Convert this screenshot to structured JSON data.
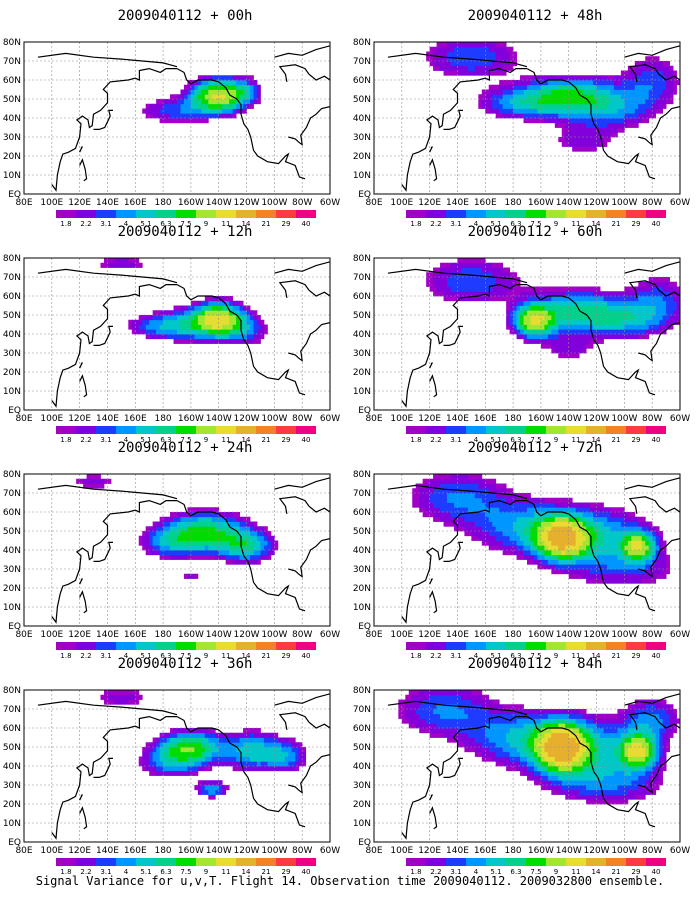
{
  "caption": "Signal Variance for u,v,T. Flight 14. Observation time 2009040112. 2009032800 ensemble.",
  "colorbar": {
    "labels": [
      "1.8",
      "2.2",
      "3.1",
      "4",
      "5.1",
      "6.3",
      "7.5",
      "9",
      "11",
      "14",
      "21",
      "29",
      "40"
    ],
    "colors": [
      "#a000c8",
      "#8200dc",
      "#1e3cff",
      "#0096ff",
      "#00c8c8",
      "#00d28c",
      "#00dc00",
      "#a0e632",
      "#e6dc32",
      "#e6af2d",
      "#f08228",
      "#fa3c3c",
      "#f00082"
    ]
  },
  "axes": {
    "x_ticks": [
      "80E",
      "100E",
      "120E",
      "140E",
      "160E",
      "180",
      "160W",
      "140W",
      "120W",
      "100W",
      "80W",
      "60W"
    ],
    "y_ticks": [
      "80N",
      "70N",
      "60N",
      "50N",
      "40N",
      "30N",
      "20N",
      "10N",
      "EQ"
    ]
  },
  "chart_data": [
    {
      "type": "heatmap",
      "title": "2009040112 + 00h",
      "lead_hours": 0,
      "blobs": [
        {
          "lon": -140,
          "lat": 52,
          "slon": 14,
          "slat": 6,
          "amp": 11
        },
        {
          "lon": -172,
          "lat": 44,
          "slon": 20,
          "slat": 5,
          "amp": 3.5
        },
        {
          "lon": -120,
          "lat": 55,
          "slon": 8,
          "slat": 5,
          "amp": 2.5
        }
      ]
    },
    {
      "type": "heatmap",
      "title": "2009040112 + 48h",
      "lead_hours": 48,
      "blobs": [
        {
          "lon": -140,
          "lat": 52,
          "slon": 22,
          "slat": 7,
          "amp": 6.5
        },
        {
          "lon": -175,
          "lat": 48,
          "slon": 22,
          "slat": 6,
          "amp": 4.5
        },
        {
          "lon": -110,
          "lat": 45,
          "slon": 22,
          "slat": 8,
          "amp": 4
        },
        {
          "lon": 150,
          "lat": 72,
          "slon": 26,
          "slat": 8,
          "amp": 4
        },
        {
          "lon": -80,
          "lat": 60,
          "slon": 16,
          "slat": 10,
          "amp": 3.5
        },
        {
          "lon": -130,
          "lat": 28,
          "slon": 18,
          "slat": 6,
          "amp": 2.5
        }
      ]
    },
    {
      "type": "heatmap",
      "title": "2009040112 + 12h",
      "lead_hours": 12,
      "blobs": [
        {
          "lon": -140,
          "lat": 48,
          "slon": 12,
          "slat": 6,
          "amp": 11
        },
        {
          "lon": -165,
          "lat": 45,
          "slon": 18,
          "slat": 6,
          "amp": 5
        },
        {
          "lon": -120,
          "lat": 42,
          "slon": 12,
          "slat": 6,
          "amp": 3.5
        },
        {
          "lon": 150,
          "lat": 77,
          "slon": 20,
          "slat": 4,
          "amp": 2.5
        },
        {
          "lon": 170,
          "lat": 44,
          "slon": 16,
          "slat": 4,
          "amp": 2.4
        }
      ]
    },
    {
      "type": "heatmap",
      "title": "2009040112 + 60h",
      "lead_hours": 60,
      "blobs": [
        {
          "lon": -165,
          "lat": 47,
          "slon": 10,
          "slat": 6,
          "amp": 10
        },
        {
          "lon": -135,
          "lat": 52,
          "slon": 22,
          "slat": 8,
          "amp": 6
        },
        {
          "lon": -100,
          "lat": 48,
          "slon": 20,
          "slat": 7,
          "amp": 4.5
        },
        {
          "lon": 150,
          "lat": 68,
          "slon": 26,
          "slat": 9,
          "amp": 4
        },
        {
          "lon": -75,
          "lat": 58,
          "slon": 16,
          "slat": 10,
          "amp": 3.5
        },
        {
          "lon": -140,
          "lat": 32,
          "slon": 14,
          "slat": 5,
          "amp": 2.4
        }
      ]
    },
    {
      "type": "heatmap",
      "title": "2009040112 + 24h",
      "lead_hours": 24,
      "blobs": [
        {
          "lon": -150,
          "lat": 50,
          "slon": 20,
          "slat": 7,
          "amp": 7.5
        },
        {
          "lon": -120,
          "lat": 42,
          "slon": 14,
          "slat": 6,
          "amp": 6
        },
        {
          "lon": -175,
          "lat": 44,
          "slon": 16,
          "slat": 6,
          "amp": 4
        },
        {
          "lon": 130,
          "lat": 76,
          "slon": 16,
          "slat": 4,
          "amp": 2.4
        },
        {
          "lon": -160,
          "lat": 26,
          "slon": 7,
          "slat": 2,
          "amp": 2.3
        }
      ]
    },
    {
      "type": "heatmap",
      "title": "2009040112 + 72h",
      "lead_hours": 72,
      "blobs": [
        {
          "lon": -145,
          "lat": 46,
          "slon": 12,
          "slat": 7,
          "amp": 12
        },
        {
          "lon": -90,
          "lat": 42,
          "slon": 8,
          "slat": 5,
          "amp": 9
        },
        {
          "lon": -120,
          "lat": 48,
          "slon": 28,
          "slat": 10,
          "amp": 5
        },
        {
          "lon": -170,
          "lat": 52,
          "slon": 28,
          "slat": 10,
          "amp": 4.5
        },
        {
          "lon": 140,
          "lat": 68,
          "slon": 26,
          "slat": 10,
          "amp": 4
        },
        {
          "lon": -100,
          "lat": 30,
          "slon": 30,
          "slat": 8,
          "amp": 3
        }
      ]
    },
    {
      "type": "heatmap",
      "title": "2009040112 + 36h",
      "lead_hours": 36,
      "blobs": [
        {
          "lon": -160,
          "lat": 50,
          "slon": 16,
          "slat": 6,
          "amp": 8
        },
        {
          "lon": -115,
          "lat": 48,
          "slon": 14,
          "slat": 7,
          "amp": 6
        },
        {
          "lon": -90,
          "lat": 45,
          "slon": 10,
          "slat": 6,
          "amp": 4
        },
        {
          "lon": -175,
          "lat": 42,
          "slon": 16,
          "slat": 6,
          "amp": 4
        },
        {
          "lon": 150,
          "lat": 76,
          "slon": 20,
          "slat": 5,
          "amp": 2.5
        },
        {
          "lon": -145,
          "lat": 28,
          "slon": 8,
          "slat": 3,
          "amp": 5
        }
      ]
    },
    {
      "type": "heatmap",
      "title": "2009040112 + 84h",
      "lead_hours": 84,
      "blobs": [
        {
          "lon": -145,
          "lat": 50,
          "slon": 12,
          "slat": 8,
          "amp": 13
        },
        {
          "lon": -90,
          "lat": 48,
          "slon": 9,
          "slat": 6,
          "amp": 10
        },
        {
          "lon": -125,
          "lat": 48,
          "slon": 30,
          "slat": 12,
          "amp": 5
        },
        {
          "lon": -175,
          "lat": 55,
          "slon": 28,
          "slat": 10,
          "amp": 4.5
        },
        {
          "lon": 130,
          "lat": 70,
          "slon": 26,
          "slat": 10,
          "amp": 4
        },
        {
          "lon": -80,
          "lat": 65,
          "slon": 14,
          "slat": 8,
          "amp": 4
        },
        {
          "lon": -110,
          "lat": 30,
          "slon": 30,
          "slat": 8,
          "amp": 3
        }
      ]
    }
  ]
}
